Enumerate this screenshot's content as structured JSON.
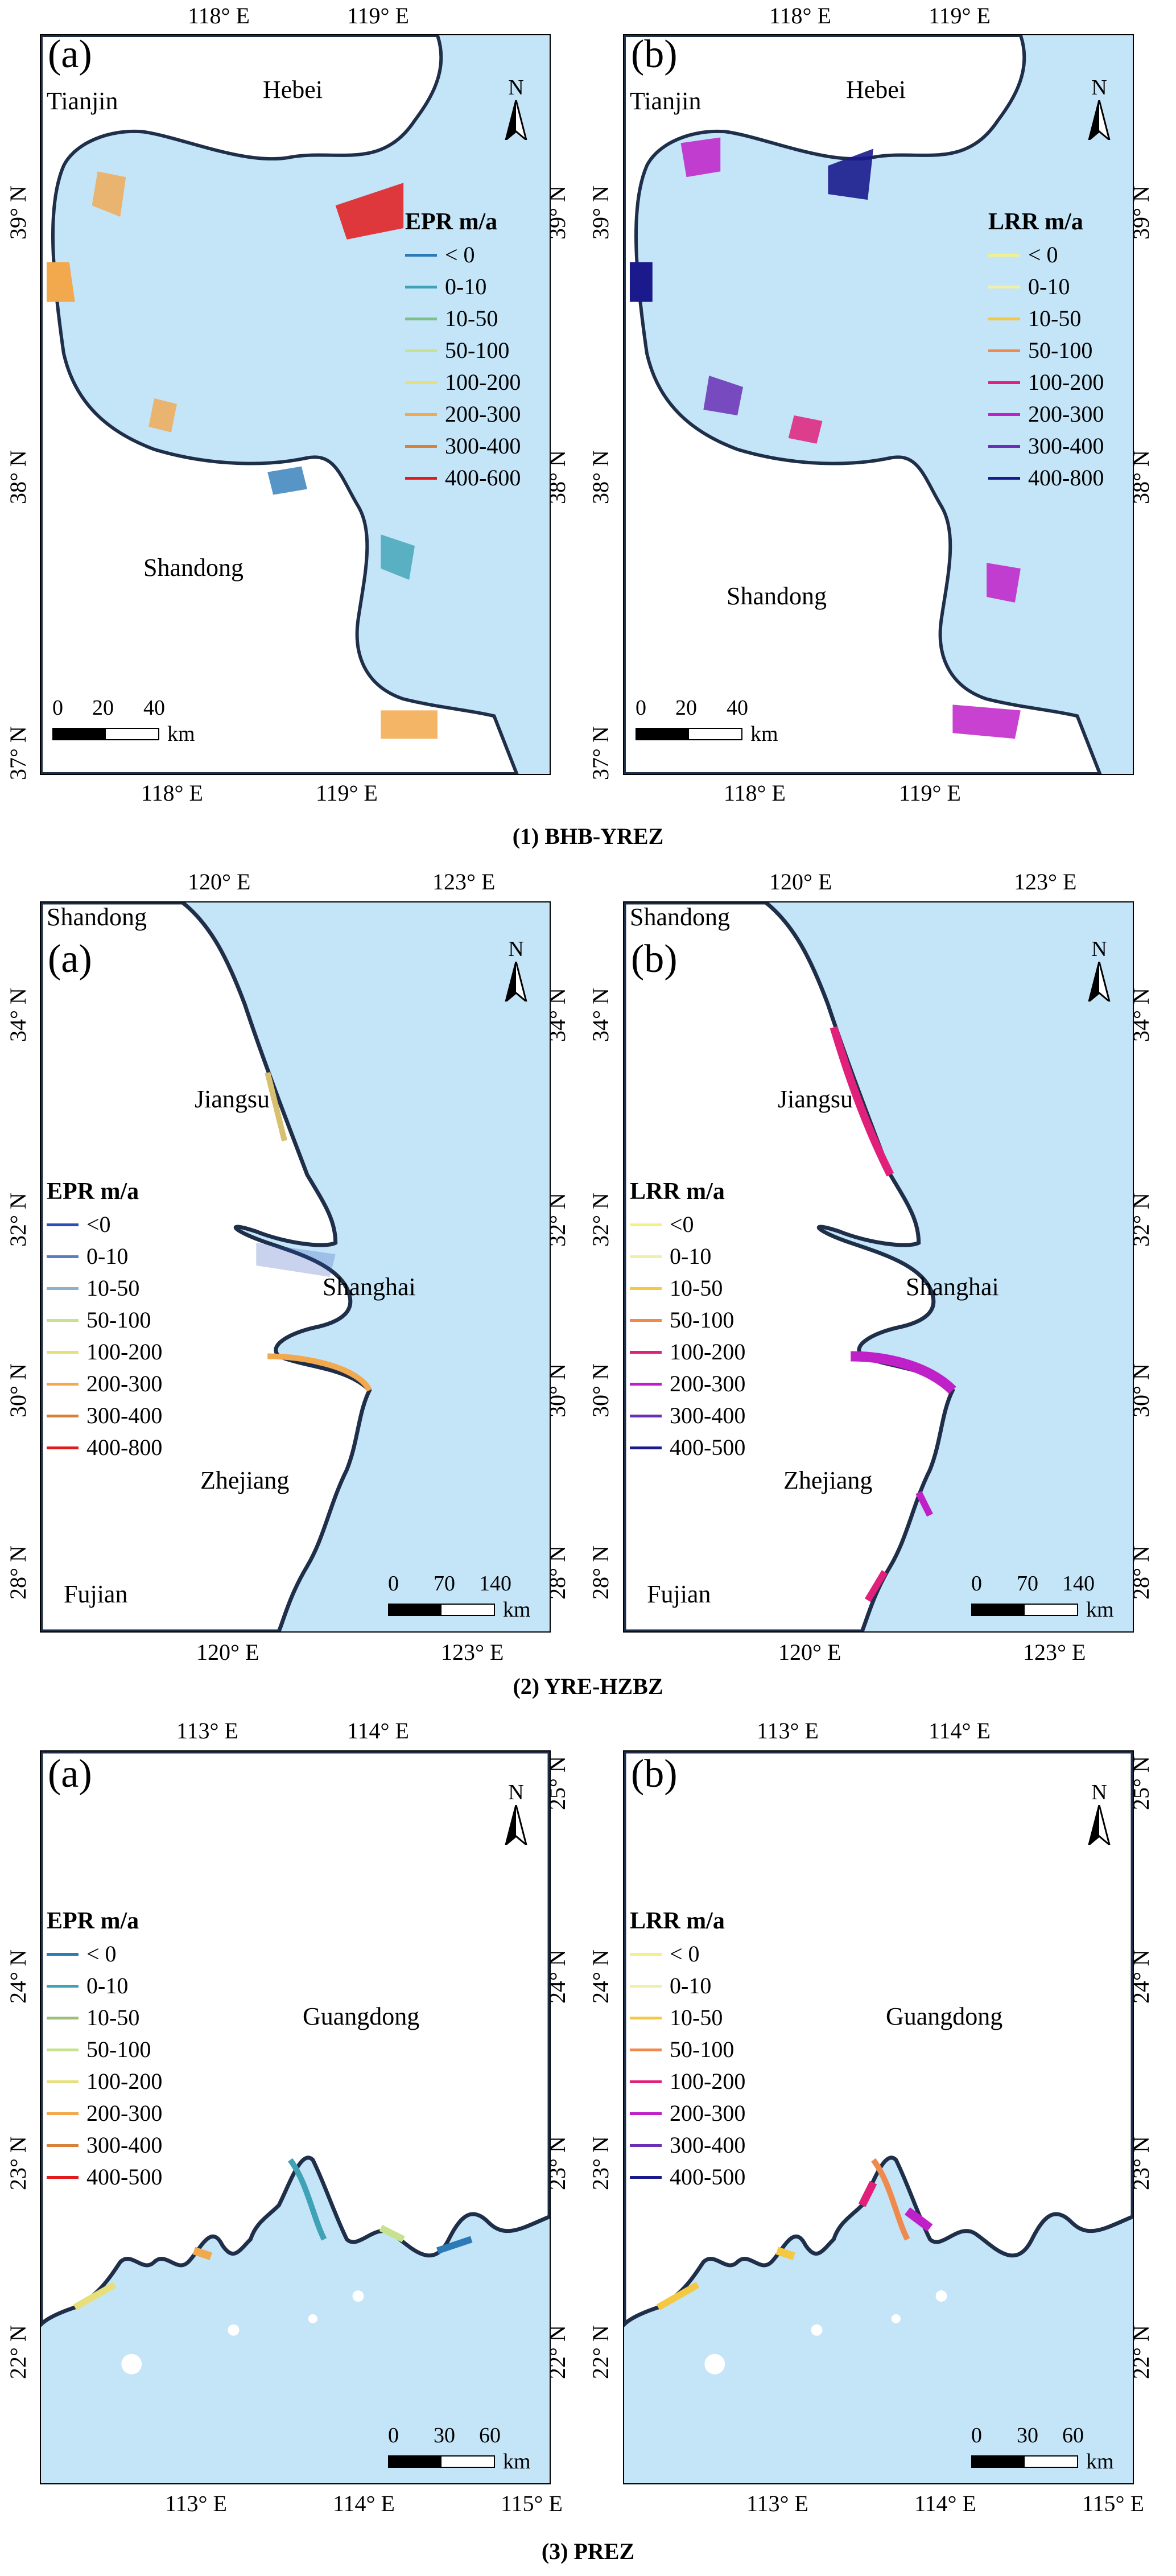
{
  "rows": [
    {
      "caption": "(1) BHB-YREZ",
      "top_lon_ticks": [
        "118° E",
        "119° E"
      ],
      "bottom_lon_ticks": [
        "118° E",
        "119° E"
      ],
      "left_lat_ticks": [
        "39° N",
        "38° N",
        "37° N"
      ],
      "right_lat_ticks": [
        "39° N",
        "38° N"
      ],
      "panels": [
        {
          "letter": "(a)",
          "regions": [
            "Tianjin",
            "Hebei",
            "Shandong"
          ],
          "legend_title": "EPR m/a",
          "legend": [
            {
              "label": "< 0",
              "color": "#2c7bb6"
            },
            {
              "label": "0-10",
              "color": "#3fa2b5"
            },
            {
              "label": "10-50",
              "color": "#7cc08a"
            },
            {
              "label": "50-100",
              "color": "#c7e28f"
            },
            {
              "label": "100-200",
              "color": "#e6df7a"
            },
            {
              "label": "200-300",
              "color": "#f2a84c"
            },
            {
              "label": "300-400",
              "color": "#d7823a"
            },
            {
              "label": "400-600",
              "color": "#e31a1c"
            }
          ],
          "scale": {
            "labels": [
              "0",
              "20",
              "40"
            ],
            "unit": "km"
          }
        },
        {
          "letter": "(b)",
          "regions": [
            "Tianjin",
            "Hebei",
            "Shandong"
          ],
          "legend_title": "LRR m/a",
          "legend": [
            {
              "label": "< 0",
              "color": "#f2f08a"
            },
            {
              "label": "0-10",
              "color": "#eef0a8"
            },
            {
              "label": "10-50",
              "color": "#f5c842"
            },
            {
              "label": "50-100",
              "color": "#f08a4c"
            },
            {
              "label": "100-200",
              "color": "#e0207a"
            },
            {
              "label": "200-300",
              "color": "#c020c8"
            },
            {
              "label": "300-400",
              "color": "#6a2fb5"
            },
            {
              "label": "400-800",
              "color": "#1a1a8c"
            }
          ],
          "scale": {
            "labels": [
              "0",
              "20",
              "40"
            ],
            "unit": "km"
          }
        }
      ]
    },
    {
      "caption": "(2) YRE-HZBZ",
      "top_lon_ticks": [
        "120° E",
        "123° E"
      ],
      "bottom_lon_ticks": [
        "120° E",
        "123° E"
      ],
      "left_lat_ticks": [
        "34° N",
        "32° N",
        "30° N",
        "28° N"
      ],
      "right_lat_ticks": [
        "34° N",
        "32° N",
        "30° N",
        "28° N"
      ],
      "panels": [
        {
          "letter": "(a)",
          "regions": [
            "Shandong",
            "Jiangsu",
            "Shanghai",
            "Zhejiang",
            "Fujian"
          ],
          "legend_title": "EPR m/a",
          "legend": [
            {
              "label": "<0",
              "color": "#2c4fb6"
            },
            {
              "label": "0-10",
              "color": "#5a7fc0"
            },
            {
              "label": "10-50",
              "color": "#8fb0c8"
            },
            {
              "label": "50-100",
              "color": "#c7e28f"
            },
            {
              "label": "100-200",
              "color": "#e6df7a"
            },
            {
              "label": "200-300",
              "color": "#f2a84c"
            },
            {
              "label": "300-400",
              "color": "#d7823a"
            },
            {
              "label": "400-800",
              "color": "#e31a1c"
            }
          ],
          "scale": {
            "labels": [
              "0",
              "70",
              "140"
            ],
            "unit": "km"
          }
        },
        {
          "letter": "(b)",
          "regions": [
            "Shandong",
            "Jiangsu",
            "Shanghai",
            "Zhejiang",
            "Fujian"
          ],
          "legend_title": "LRR m/a",
          "legend": [
            {
              "label": "<0",
              "color": "#f2f08a"
            },
            {
              "label": "0-10",
              "color": "#eef0a8"
            },
            {
              "label": "10-50",
              "color": "#f5c842"
            },
            {
              "label": "50-100",
              "color": "#f08a4c"
            },
            {
              "label": "100-200",
              "color": "#e0207a"
            },
            {
              "label": "200-300",
              "color": "#c020c8"
            },
            {
              "label": "300-400",
              "color": "#6a2fb5"
            },
            {
              "label": "400-500",
              "color": "#1a1a8c"
            }
          ],
          "scale": {
            "labels": [
              "0",
              "70",
              "140"
            ],
            "unit": "km"
          }
        }
      ]
    },
    {
      "caption": "(3) PREZ",
      "top_lon_ticks": [
        "113° E",
        "114° E"
      ],
      "bottom_lon_ticks": [
        "113° E",
        "114° E",
        "115° E"
      ],
      "left_lat_ticks": [
        "24° N",
        "23° N",
        "22° N"
      ],
      "right_lat_ticks": [
        "25° N",
        "24° N",
        "23° N",
        "22° N"
      ],
      "panels": [
        {
          "letter": "(a)",
          "regions": [
            "Guangdong"
          ],
          "legend_title": "EPR m/a",
          "legend": [
            {
              "label": "< 0",
              "color": "#2c7bb6"
            },
            {
              "label": "0-10",
              "color": "#3fa2b5"
            },
            {
              "label": "10-50",
              "color": "#9cc07a"
            },
            {
              "label": "50-100",
              "color": "#c7e28f"
            },
            {
              "label": "100-200",
              "color": "#e6df7a"
            },
            {
              "label": "200-300",
              "color": "#f2a84c"
            },
            {
              "label": "300-400",
              "color": "#d7823a"
            },
            {
              "label": "400-500",
              "color": "#e31a1c"
            }
          ],
          "scale": {
            "labels": [
              "0",
              "30",
              "60"
            ],
            "unit": "km"
          }
        },
        {
          "letter": "(b)",
          "regions": [
            "Guangdong"
          ],
          "legend_title": "LRR m/a",
          "legend": [
            {
              "label": "< 0",
              "color": "#f2f08a"
            },
            {
              "label": "0-10",
              "color": "#eef0a8"
            },
            {
              "label": "10-50",
              "color": "#f5c842"
            },
            {
              "label": "50-100",
              "color": "#f08a4c"
            },
            {
              "label": "100-200",
              "color": "#e0207a"
            },
            {
              "label": "200-300",
              "color": "#c020c8"
            },
            {
              "label": "300-400",
              "color": "#6a2fb5"
            },
            {
              "label": "400-500",
              "color": "#1a1a8c"
            }
          ],
          "scale": {
            "labels": [
              "0",
              "30",
              "60"
            ],
            "unit": "km"
          }
        }
      ]
    }
  ],
  "north_label": "N",
  "colors": {
    "sea": "#c4e5f8",
    "land": "#ffffff",
    "shoreline": "#1f2f4a"
  }
}
